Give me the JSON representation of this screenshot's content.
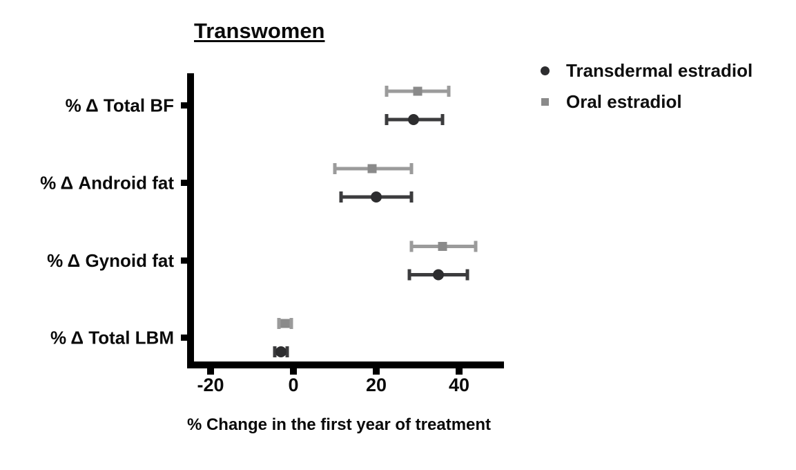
{
  "chart_data": {
    "type": "scatter",
    "subtype": "forest-plot-with-error-bars",
    "title": "Transwomen",
    "xlabel": "% Change in the first year of treatment",
    "xlim": [
      -25.5,
      51
    ],
    "x_ticks": [
      -20,
      0,
      20,
      40
    ],
    "x_tick_labels": [
      "-20",
      "0",
      "20",
      "40"
    ],
    "grid": false,
    "legend_position": "top-right",
    "categories": [
      "% Δ Total BF",
      "% Δ Android fat",
      "% Δ Gynoid fat",
      "% Δ Total LBM"
    ],
    "axis_color": "#000000",
    "series": [
      {
        "name": "Transdermal estradiol",
        "marker": "circle",
        "marker_color": "#2d2d2f",
        "line_color": "#3c3c3e",
        "means": [
          29,
          20,
          35,
          -3
        ],
        "ci_low": [
          22.5,
          11.5,
          28,
          -4.5
        ],
        "ci_high": [
          36,
          28.5,
          42,
          -1.5
        ]
      },
      {
        "name": "Oral estradiol",
        "marker": "square",
        "marker_color": "#8a8a8a",
        "line_color": "#9b9b9b",
        "means": [
          30,
          19,
          36,
          -2
        ],
        "ci_low": [
          22.5,
          10,
          28.5,
          -3.5
        ],
        "ci_high": [
          37.5,
          28.5,
          44,
          -0.5
        ]
      }
    ]
  }
}
